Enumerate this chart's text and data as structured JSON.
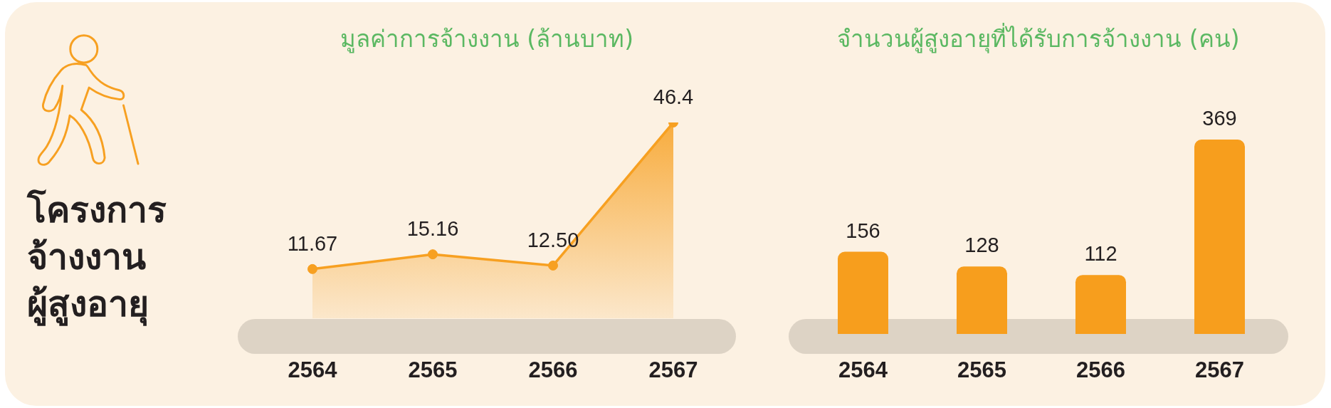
{
  "chart_data": [
    {
      "type": "other",
      "title": "โครงการ\nจ้างงาน\nผู้สูงอายุ"
    },
    {
      "type": "area",
      "title": "มูลค่าการจ้างงาน (ล้านบาท)",
      "categories": [
        "2564",
        "2565",
        "2566",
        "2567"
      ],
      "values": [
        11.67,
        15.16,
        12.5,
        46.4
      ],
      "value_labels": [
        "11.67",
        "15.16",
        "12.50",
        "46.4"
      ],
      "color": "#f7a021",
      "marker": "circle",
      "tick_labels": "x"
    },
    {
      "type": "bar",
      "title": "จำนวนผู้สูงอายุที่ได้รับการจ้างงาน (คน)",
      "categories": [
        "2564",
        "2565",
        "2566",
        "2567"
      ],
      "values": [
        156,
        128,
        112,
        369
      ],
      "color": "#f79e1d",
      "data_labels": true,
      "tick_labels": "x"
    }
  ]
}
